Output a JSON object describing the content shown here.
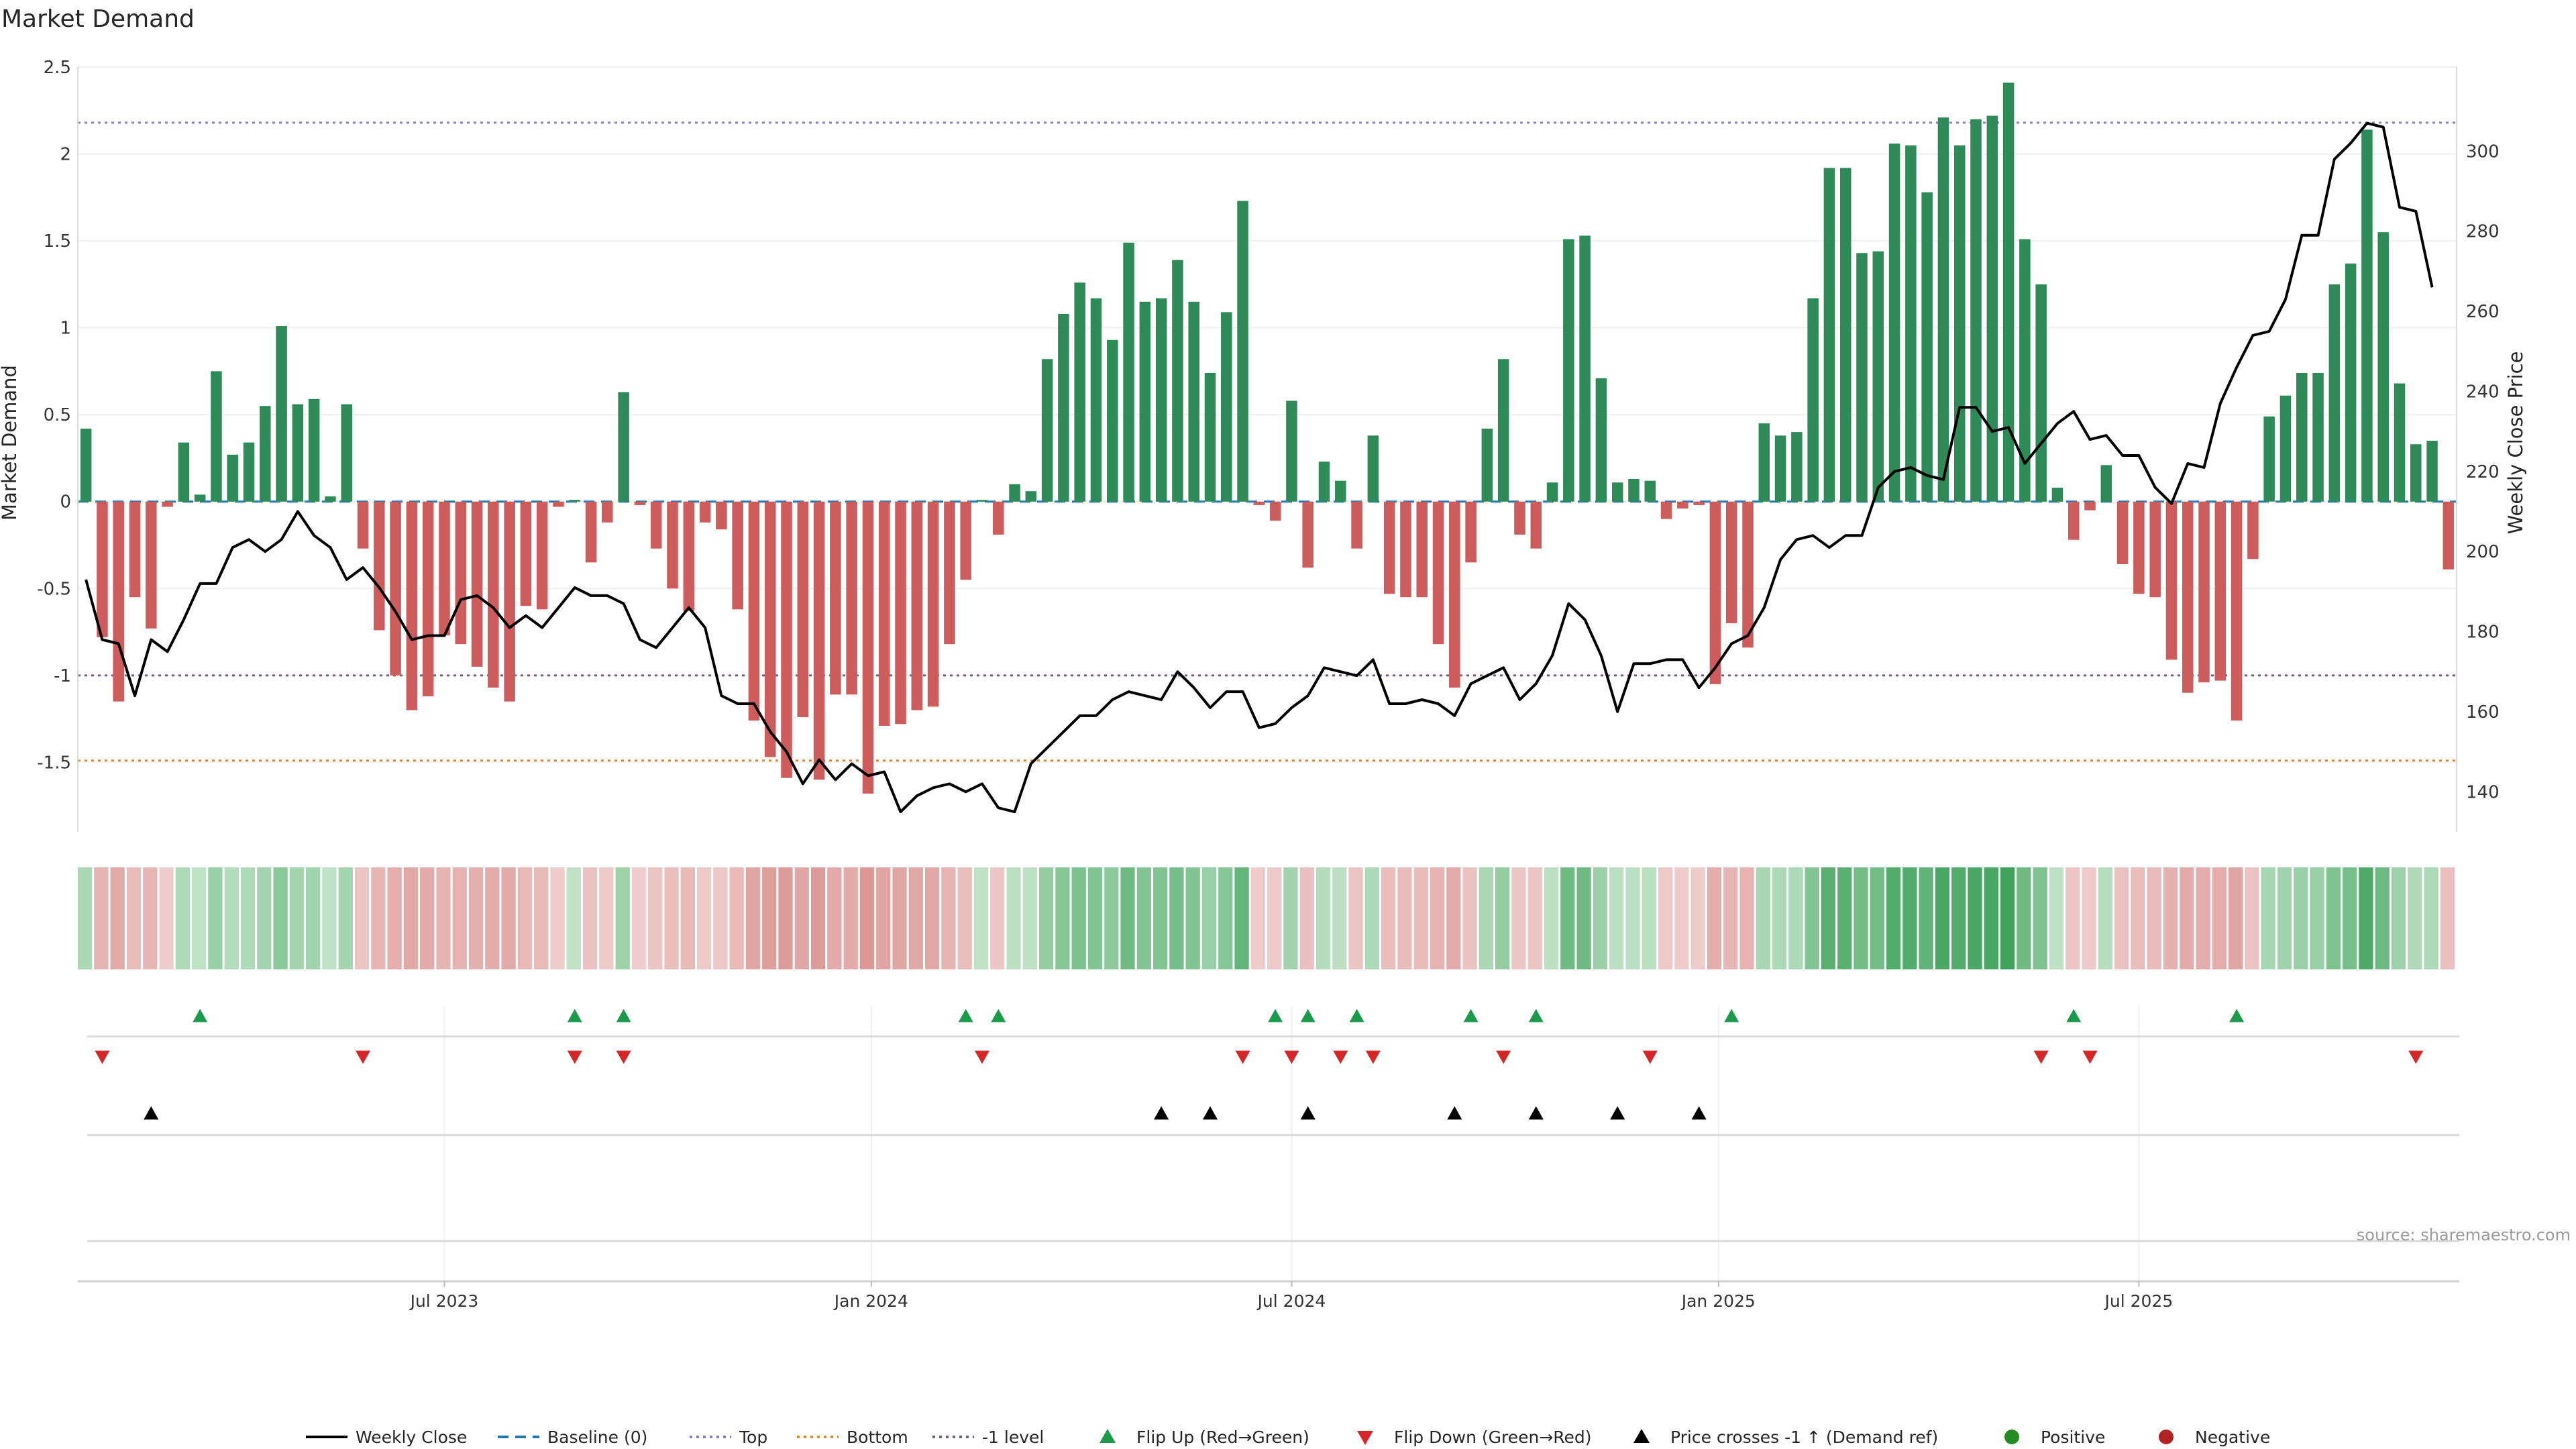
{
  "title": "Market Demand",
  "source": "source: sharemaestro.com",
  "colors": {
    "bar_pos": "#2e8b57",
    "bar_neg": "#cd5c5c",
    "close": "#000000",
    "baseline": "#1f77b4",
    "top": "#8c7ec9",
    "bottom": "#e08a2c",
    "minus1": "#6c5f86",
    "flip_up": "#1b9a4b",
    "flip_down": "#d62728",
    "cross": "#000000",
    "positive": "#228b22",
    "negative": "#b22222"
  },
  "legend": [
    {
      "key": "close",
      "type": "line",
      "label": "Weekly Close"
    },
    {
      "key": "baseline",
      "type": "dash",
      "label": "Baseline (0)"
    },
    {
      "key": "top",
      "type": "dot",
      "label": "Top"
    },
    {
      "key": "bottom",
      "type": "dot",
      "label": "Bottom"
    },
    {
      "key": "minus1",
      "type": "dot",
      "label": "-1 level"
    },
    {
      "key": "flip_up",
      "type": "tri-up",
      "label": "Flip Up (Red→Green)"
    },
    {
      "key": "flip_down",
      "type": "tri-down",
      "label": "Flip Down (Green→Red)"
    },
    {
      "key": "cross",
      "type": "tri-up",
      "label": "Price crosses -1 ↑ (Demand ref)"
    },
    {
      "key": "positive",
      "type": "circle",
      "label": "Positive"
    },
    {
      "key": "negative",
      "type": "circle",
      "label": "Negative"
    }
  ],
  "chart_data": {
    "type": "bar",
    "ylabel": "Market Demand",
    "y2label": "Weekly Close Price",
    "ylim": [
      -1.9,
      2.5
    ],
    "y2lim": [
      130,
      321
    ],
    "yticks": [
      -1.5,
      -1,
      -0.5,
      0,
      0.5,
      1,
      1.5,
      2,
      2.5
    ],
    "ytick_labels": [
      "-1.5",
      "-1",
      "-0.5",
      "0",
      "0.5",
      "1",
      "1.5",
      "2",
      "2.5"
    ],
    "y2ticks": [
      140,
      160,
      180,
      200,
      220,
      240,
      260,
      280,
      300
    ],
    "y2tick_labels": [
      "140",
      "160",
      "180",
      "200",
      "220",
      "240",
      "260",
      "280",
      "300"
    ],
    "xticks": [
      {
        "index": 22.5,
        "label": "Jul 2023"
      },
      {
        "index": 48.7,
        "label": "Jan 2024"
      },
      {
        "index": 74.5,
        "label": "Jul 2024"
      },
      {
        "index": 100.7,
        "label": "Jan 2025"
      },
      {
        "index": 126.5,
        "label": "Jul 2025"
      }
    ],
    "levels": {
      "top": 2.18,
      "bottom": -1.49,
      "minus1": -1.0,
      "baseline": 0
    },
    "demand": [
      0.42,
      -0.78,
      -1.15,
      -0.55,
      -0.73,
      -0.03,
      0.34,
      0.04,
      0.75,
      0.27,
      0.34,
      0.55,
      1.01,
      0.56,
      0.59,
      0.03,
      0.56,
      -0.27,
      -0.74,
      -1.0,
      -1.2,
      -1.12,
      -0.77,
      -0.82,
      -0.95,
      -1.07,
      -1.15,
      -0.6,
      -0.62,
      -0.03,
      0.01,
      -0.35,
      -0.12,
      0.63,
      -0.02,
      -0.27,
      -0.5,
      -0.63,
      -0.12,
      -0.16,
      -0.62,
      -1.26,
      -1.47,
      -1.59,
      -1.24,
      -1.6,
      -1.11,
      -1.11,
      -1.68,
      -1.29,
      -1.28,
      -1.2,
      -1.18,
      -0.82,
      -0.45,
      0.01,
      -0.19,
      0.1,
      0.06,
      0.82,
      1.08,
      1.26,
      1.17,
      0.93,
      1.49,
      1.15,
      1.17,
      1.39,
      1.15,
      0.74,
      1.09,
      1.73,
      -0.02,
      -0.11,
      0.58,
      -0.38,
      0.23,
      0.12,
      -0.27,
      0.38,
      -0.53,
      -0.55,
      -0.55,
      -0.82,
      -1.07,
      -0.35,
      0.42,
      0.82,
      -0.19,
      -0.27,
      0.11,
      1.51,
      1.53,
      0.71,
      0.11,
      0.13,
      0.12,
      -0.1,
      -0.04,
      -0.02,
      -1.05,
      -0.7,
      -0.84,
      0.45,
      0.38,
      0.4,
      1.17,
      1.92,
      1.92,
      1.43,
      1.44,
      2.06,
      2.05,
      1.78,
      2.21,
      2.05,
      2.2,
      2.22,
      2.41,
      1.51,
      1.25,
      0.08,
      -0.22,
      -0.05,
      0.21,
      -0.36,
      -0.53,
      -0.55,
      -0.91,
      -1.1,
      -1.04,
      -1.03,
      -1.26,
      -0.33,
      0.49,
      0.61,
      0.74,
      0.74,
      1.25,
      1.37,
      2.14,
      1.55,
      0.68,
      0.33,
      0.35,
      -0.39
    ],
    "close": [
      193,
      178,
      177,
      164,
      178,
      175,
      183,
      192,
      192,
      201,
      203,
      200,
      203,
      210,
      204,
      201,
      193,
      196,
      191,
      185,
      178,
      179,
      179,
      188,
      189,
      186,
      181,
      184,
      181,
      186,
      191,
      189,
      189,
      187,
      178,
      176,
      181,
      186,
      181,
      164,
      162,
      162,
      155,
      150,
      142,
      148,
      143,
      147,
      144,
      145,
      135,
      139,
      141,
      142,
      140,
      142,
      136,
      135,
      147,
      151,
      155,
      159,
      159,
      163,
      165,
      164,
      163,
      170,
      166,
      161,
      165,
      165,
      156,
      157,
      161,
      164,
      171,
      170,
      169,
      173,
      162,
      162,
      163,
      162,
      159,
      167,
      169,
      171,
      163,
      167,
      174,
      187,
      183,
      174,
      160,
      172,
      172,
      173,
      173,
      166,
      171,
      177,
      179,
      186,
      198,
      203,
      204,
      201,
      204,
      204,
      216,
      220,
      221,
      219,
      218,
      236,
      236,
      230,
      231,
      222,
      227,
      232,
      235,
      228,
      229,
      224,
      224,
      216,
      212,
      222,
      221,
      237,
      246,
      254,
      255,
      263,
      279,
      279,
      298,
      302,
      307,
      306,
      286,
      285,
      266
    ],
    "flip_up": [
      7,
      30,
      33,
      54,
      56,
      73,
      75,
      78,
      85,
      89,
      101,
      122,
      132
    ],
    "flip_down": [
      1,
      17,
      30,
      33,
      55,
      71,
      74,
      77,
      79,
      87,
      96,
      120,
      123,
      143
    ],
    "price_cross": [
      4,
      66,
      69,
      75,
      84,
      89,
      94,
      99
    ]
  }
}
